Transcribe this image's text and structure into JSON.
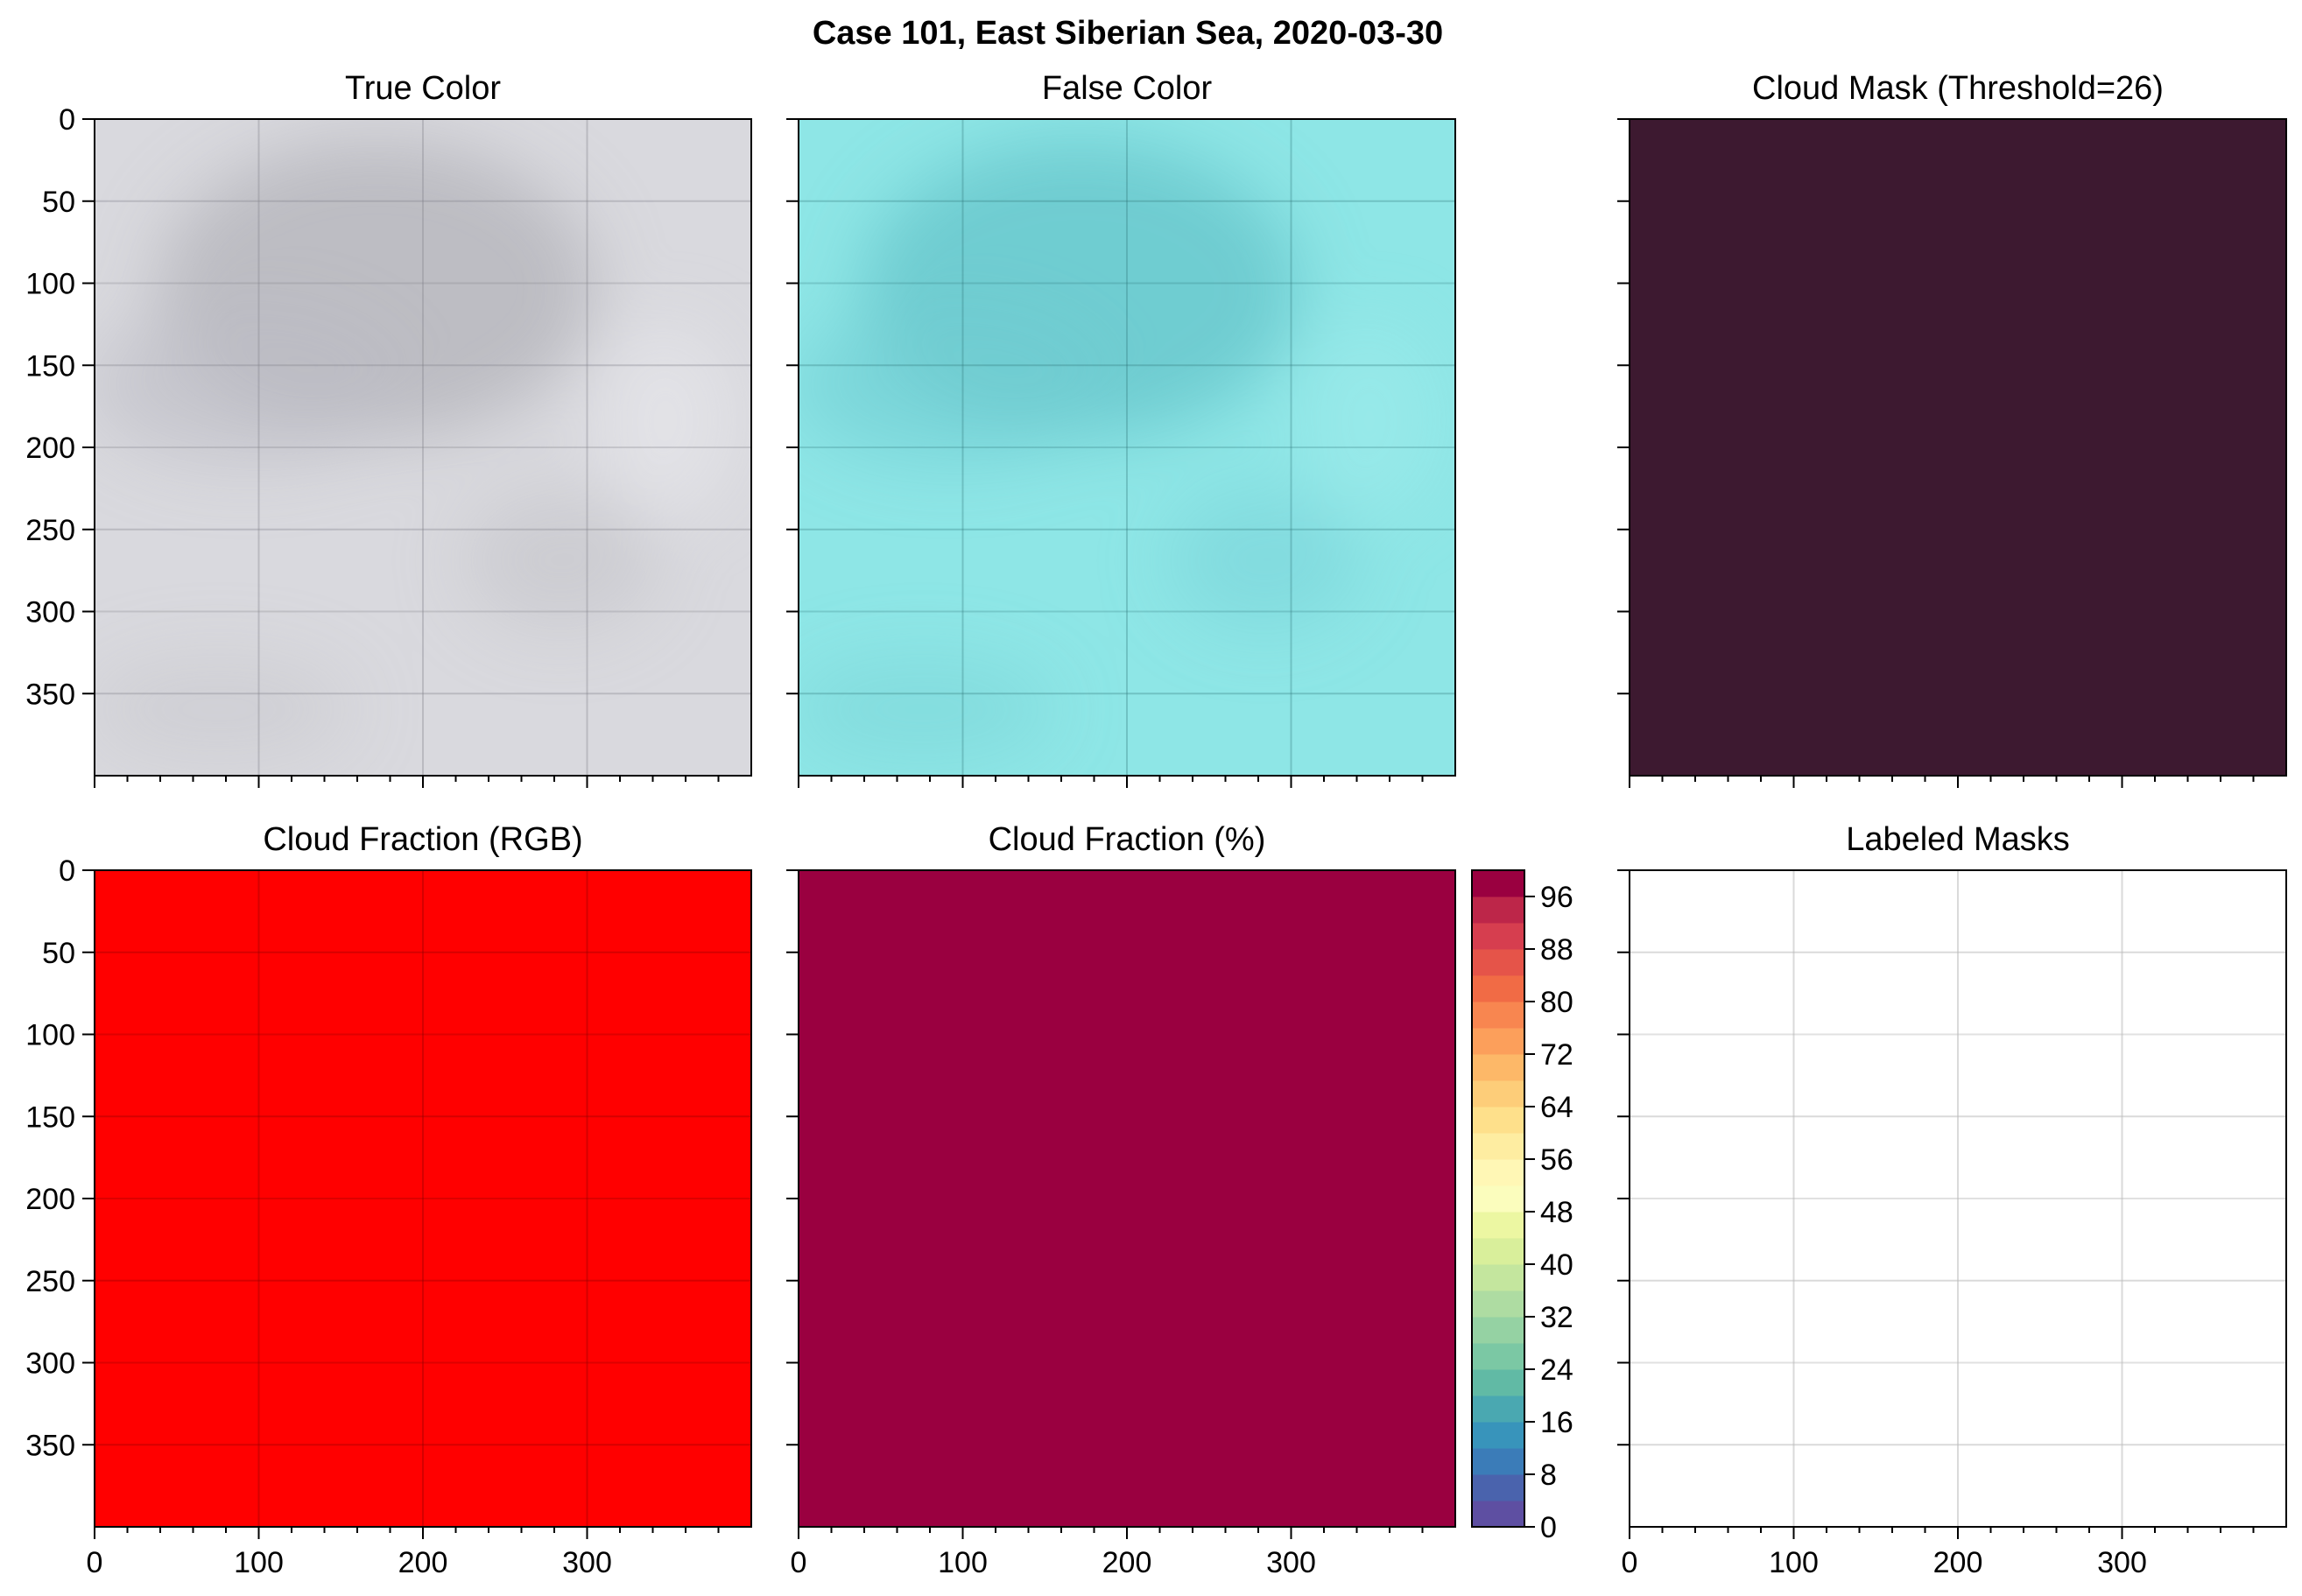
{
  "figure": {
    "suptitle": "Case 101, East Siberian Sea, 2020-03-30"
  },
  "chart_data": [
    {
      "id": "true-color",
      "type": "image",
      "title": "True Color",
      "xlabel": "",
      "ylabel": "",
      "xlim": [
        0,
        400
      ],
      "ylim": [
        400,
        0
      ],
      "yticks": [
        0,
        50,
        100,
        150,
        200,
        250,
        300,
        350
      ],
      "xticks": [],
      "grid": true,
      "colors": {
        "base": "#d9d9de",
        "shade": "#a9a9b0"
      }
    },
    {
      "id": "false-color",
      "type": "image",
      "title": "False Color",
      "xlabel": "",
      "ylabel": "",
      "xlim": [
        0,
        400
      ],
      "ylim": [
        400,
        0
      ],
      "yticks": [],
      "xticks": [],
      "grid": true,
      "colors": {
        "base": "#8ee6e6",
        "shade": "#5bbcc2"
      }
    },
    {
      "id": "cloud-mask",
      "type": "heatmap",
      "title": "Cloud Mask (Threshold=26)",
      "xlabel": "",
      "ylabel": "",
      "xlim": [
        0,
        400
      ],
      "ylim": [
        400,
        0
      ],
      "yticks": [],
      "xticks": [],
      "grid": false,
      "colors": {
        "fill": "#3d1930"
      }
    },
    {
      "id": "cloud-fraction-rgb",
      "type": "heatmap",
      "title": "Cloud Fraction (RGB)",
      "xlabel": "",
      "ylabel": "",
      "xlim": [
        0,
        400
      ],
      "ylim": [
        400,
        0
      ],
      "yticks": [
        0,
        50,
        100,
        150,
        200,
        250,
        300,
        350
      ],
      "xticks": [
        0,
        100,
        200,
        300
      ],
      "grid": true,
      "colors": {
        "fill": "#ff0000"
      }
    },
    {
      "id": "cloud-fraction-pct",
      "type": "heatmap",
      "title": "Cloud Fraction (%)",
      "xlabel": "",
      "ylabel": "",
      "xlim": [
        0,
        400
      ],
      "ylim": [
        400,
        0
      ],
      "yticks": [],
      "xticks": [
        0,
        100,
        200,
        300
      ],
      "grid": false,
      "value_percent": 100,
      "colors": {
        "fill": "#9a0040"
      },
      "colorbar": {
        "range": [
          0,
          100
        ],
        "ticks": [
          0,
          8,
          16,
          24,
          32,
          40,
          48,
          56,
          64,
          72,
          80,
          88,
          96
        ],
        "levels": 25,
        "colors": [
          "#5e4fa2",
          "#4a63ad",
          "#3b7cb8",
          "#3894bb",
          "#4aa8b1",
          "#61baa5",
          "#7bc8a4",
          "#95d2a3",
          "#aedca2",
          "#c4e69e",
          "#d9ef9b",
          "#ecf7a2",
          "#fbfdbd",
          "#fff7b5",
          "#feeda1",
          "#fee08b",
          "#fdcd79",
          "#fdb868",
          "#fc9f5b",
          "#f88650",
          "#f16b45",
          "#e55449",
          "#d63e4f",
          "#bd2649",
          "#9a0040"
        ]
      }
    },
    {
      "id": "labeled-masks",
      "type": "image",
      "title": "Labeled Masks",
      "xlabel": "",
      "ylabel": "",
      "xlim": [
        0,
        400
      ],
      "ylim": [
        400,
        0
      ],
      "yticks": [],
      "xticks": [
        0,
        100,
        200,
        300
      ],
      "grid": true,
      "colors": {
        "fill": "#ffffff"
      }
    }
  ]
}
